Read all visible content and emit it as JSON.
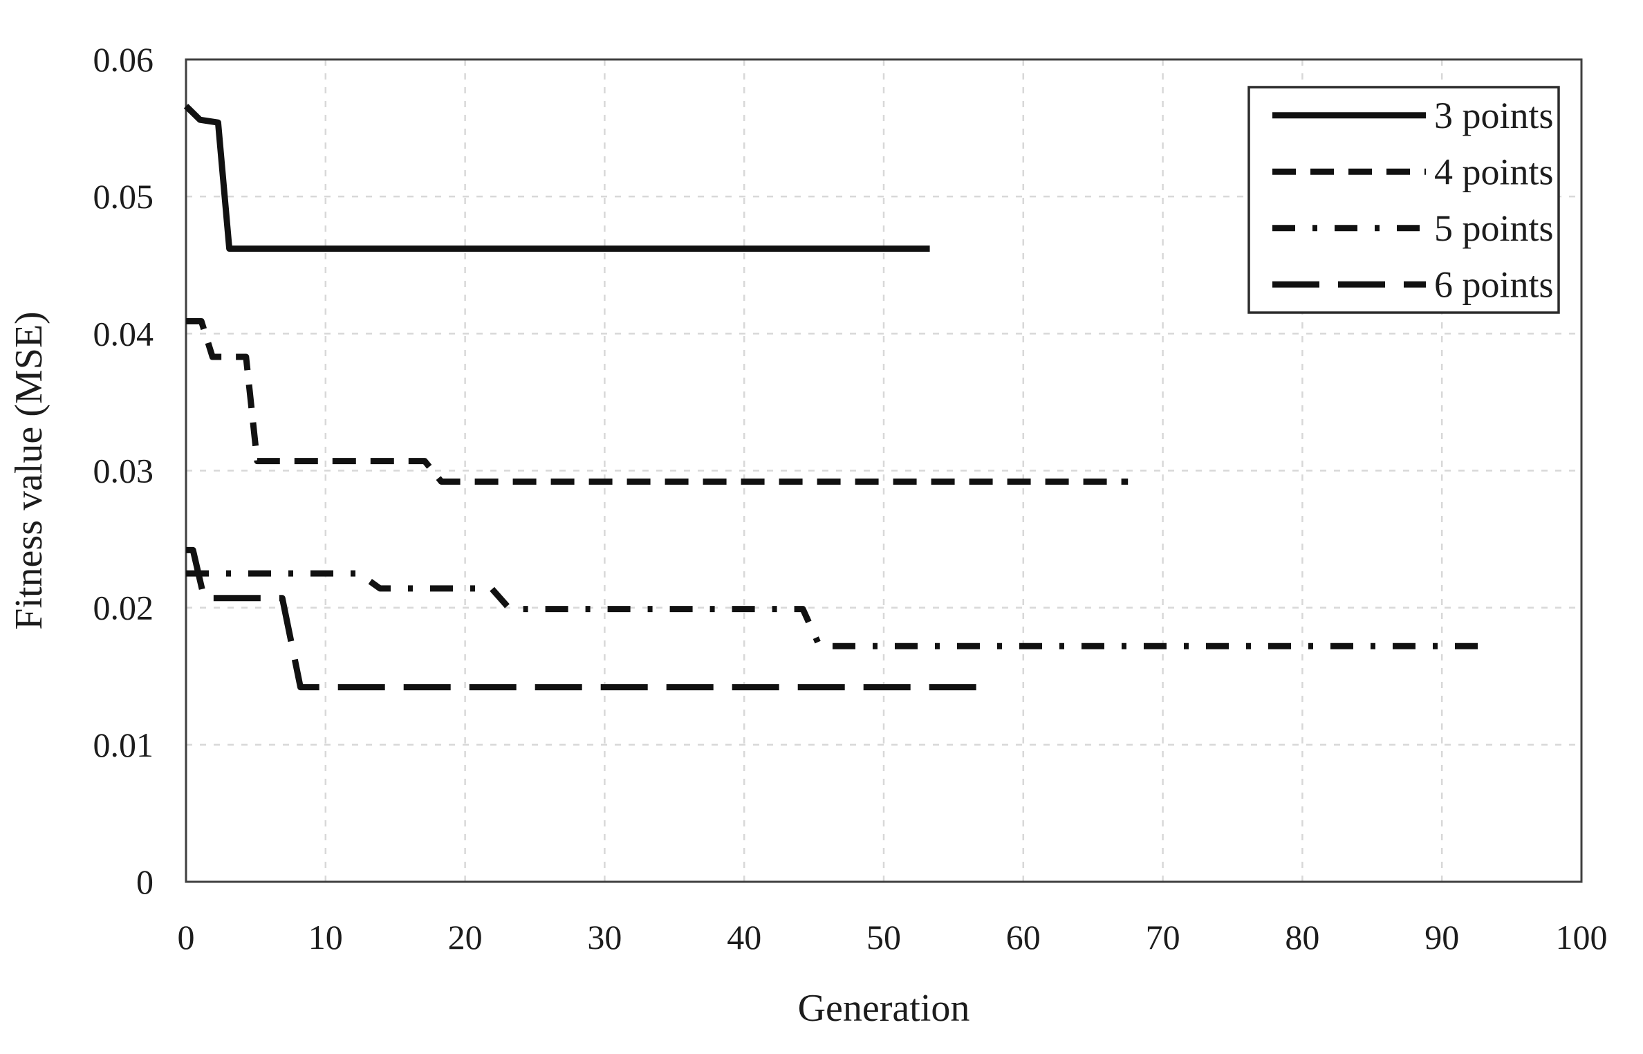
{
  "chart_data": {
    "type": "line",
    "title": "",
    "xlabel": "Generation",
    "ylabel": "Fitness value (MSE)",
    "xlim": [
      0,
      100
    ],
    "ylim": [
      0,
      0.06
    ],
    "x_ticks": [
      0,
      10,
      20,
      30,
      40,
      50,
      60,
      70,
      80,
      90,
      100
    ],
    "y_ticks": [
      0,
      0.01,
      0.02,
      0.03,
      0.04,
      0.05,
      0.06
    ],
    "y_tick_labels": [
      "0",
      "0.01",
      "0.02",
      "0.03",
      "0.04",
      "0.05",
      "0.06"
    ],
    "grid": "dashed light-gray gridlines on both axes",
    "legend_position": "top-right inside plot",
    "series": [
      {
        "name": "3 points",
        "style": "solid",
        "points": [
          [
            0,
            0.0566
          ],
          [
            1.0,
            0.0556
          ],
          [
            2.3,
            0.0554
          ],
          [
            3.1,
            0.0462
          ],
          [
            53.3,
            0.0462
          ]
        ]
      },
      {
        "name": "4 points",
        "style": "dash",
        "points": [
          [
            0,
            0.0409
          ],
          [
            1.1,
            0.0409
          ],
          [
            1.9,
            0.0383
          ],
          [
            4.3,
            0.0383
          ],
          [
            5.1,
            0.0307
          ],
          [
            17.1,
            0.0307
          ],
          [
            18.3,
            0.0292
          ],
          [
            67.5,
            0.0292
          ]
        ]
      },
      {
        "name": "5 points",
        "style": "dash-dot",
        "points": [
          [
            0,
            0.0225
          ],
          [
            12.4,
            0.0225
          ],
          [
            13.9,
            0.0214
          ],
          [
            21.9,
            0.0214
          ],
          [
            23.2,
            0.0199
          ],
          [
            44.2,
            0.0199
          ],
          [
            45.4,
            0.0172
          ],
          [
            93.5,
            0.0172
          ]
        ]
      },
      {
        "name": "6 points",
        "style": "long-dash",
        "points": [
          [
            0,
            0.0242
          ],
          [
            0.5,
            0.0242
          ],
          [
            1.3,
            0.0207
          ],
          [
            6.9,
            0.0207
          ],
          [
            8.2,
            0.0142
          ],
          [
            57.5,
            0.0142
          ]
        ]
      }
    ],
    "colors": {
      "line": "#111111",
      "grid": "#d8d8d8",
      "border": "#3f3f3f",
      "text": "#1c1c1c",
      "background": "#ffffff"
    }
  }
}
